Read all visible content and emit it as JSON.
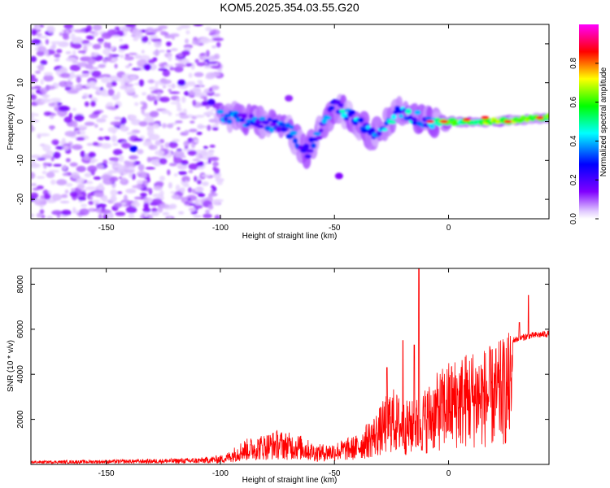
{
  "title": "KOM5.2025.354.03.55.G20",
  "chart_data": [
    {
      "type": "heatmap",
      "name": "spectrogram",
      "xlabel": "Height of straight line (km)",
      "ylabel": "Frequency (Hz)",
      "xlim": [
        -183,
        44
      ],
      "ylim": [
        -25,
        25
      ],
      "xticks": [
        -150,
        -100,
        -50,
        0
      ],
      "yticks": [
        -20,
        -10,
        0,
        10,
        20
      ],
      "colorbar": {
        "label": "Normalized spectral amplitude",
        "range": [
          0.0,
          1.0
        ],
        "ticks": [
          "0.0",
          "0.2",
          "0.4",
          "0.6",
          "0.8"
        ],
        "colors": [
          "#ffffff",
          "#8000ff",
          "#0000ff",
          "#00ffff",
          "#00ff00",
          "#ffff00",
          "#ff0000",
          "#ff00ff"
        ]
      },
      "ridge": [
        {
          "x": -100,
          "y": 2
        },
        {
          "x": -85,
          "y": 0
        },
        {
          "x": -70,
          "y": -2
        },
        {
          "x": -62,
          "y": -8
        },
        {
          "x": -50,
          "y": 4
        },
        {
          "x": -40,
          "y": 0
        },
        {
          "x": -33,
          "y": -4
        },
        {
          "x": -22,
          "y": 3
        },
        {
          "x": -10,
          "y": 0
        },
        {
          "x": 5,
          "y": 0
        },
        {
          "x": 20,
          "y": 0
        },
        {
          "x": 44,
          "y": 1
        }
      ]
    },
    {
      "type": "line",
      "name": "snr",
      "xlabel": "Height of straight line (km)",
      "ylabel": "SNR (10 * v/v)",
      "xlim": [
        -183,
        44
      ],
      "ylim": [
        0,
        8700
      ],
      "xticks": [
        -150,
        -100,
        -50,
        0
      ],
      "yticks": [
        2000,
        4000,
        6000,
        8000
      ],
      "color": "#ff0000",
      "envelope": [
        {
          "x": -183,
          "y": 120
        },
        {
          "x": -140,
          "y": 180
        },
        {
          "x": -110,
          "y": 250
        },
        {
          "x": -98,
          "y": 400
        },
        {
          "x": -90,
          "y": 1000
        },
        {
          "x": -75,
          "y": 1400
        },
        {
          "x": -65,
          "y": 1200
        },
        {
          "x": -58,
          "y": 800
        },
        {
          "x": -50,
          "y": 900
        },
        {
          "x": -40,
          "y": 1200
        },
        {
          "x": -31,
          "y": 2200
        },
        {
          "x": -25,
          "y": 3200
        },
        {
          "x": -20,
          "y": 2600
        },
        {
          "x": -15,
          "y": 2600
        },
        {
          "x": -13,
          "y": 2800
        },
        {
          "x": -8,
          "y": 3400
        },
        {
          "x": 0,
          "y": 4200
        },
        {
          "x": 10,
          "y": 4700
        },
        {
          "x": 20,
          "y": 4800
        },
        {
          "x": 28,
          "y": 5500
        },
        {
          "x": 35,
          "y": 5700
        },
        {
          "x": 44,
          "y": 5800
        }
      ],
      "spikes": [
        {
          "x": -13,
          "y": 8700
        },
        {
          "x": -15,
          "y": 5300
        },
        {
          "x": -20,
          "y": 5500
        },
        {
          "x": -27,
          "y": 4300
        },
        {
          "x": 35,
          "y": 7500
        },
        {
          "x": 31,
          "y": 6300
        }
      ]
    }
  ]
}
